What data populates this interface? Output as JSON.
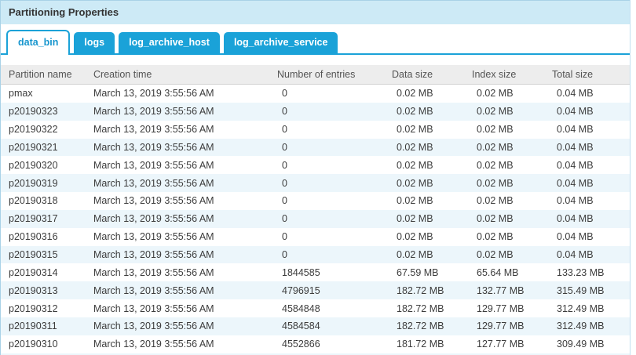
{
  "panel": {
    "title": "Partitioning Properties"
  },
  "tabs": [
    {
      "label": "data_bin",
      "active": true
    },
    {
      "label": "logs",
      "active": false
    },
    {
      "label": "log_archive_host",
      "active": false
    },
    {
      "label": "log_archive_service",
      "active": false
    }
  ],
  "table": {
    "columns": [
      "Partition name",
      "Creation time",
      "Number of entries",
      "Data size",
      "Index size",
      "Total size"
    ],
    "rows": [
      [
        "pmax",
        "March 13, 2019 3:55:56 AM",
        "0",
        "0.02 MB",
        "0.02 MB",
        "0.04 MB"
      ],
      [
        "p20190323",
        "March 13, 2019 3:55:56 AM",
        "0",
        "0.02 MB",
        "0.02 MB",
        "0.04 MB"
      ],
      [
        "p20190322",
        "March 13, 2019 3:55:56 AM",
        "0",
        "0.02 MB",
        "0.02 MB",
        "0.04 MB"
      ],
      [
        "p20190321",
        "March 13, 2019 3:55:56 AM",
        "0",
        "0.02 MB",
        "0.02 MB",
        "0.04 MB"
      ],
      [
        "p20190320",
        "March 13, 2019 3:55:56 AM",
        "0",
        "0.02 MB",
        "0.02 MB",
        "0.04 MB"
      ],
      [
        "p20190319",
        "March 13, 2019 3:55:56 AM",
        "0",
        "0.02 MB",
        "0.02 MB",
        "0.04 MB"
      ],
      [
        "p20190318",
        "March 13, 2019 3:55:56 AM",
        "0",
        "0.02 MB",
        "0.02 MB",
        "0.04 MB"
      ],
      [
        "p20190317",
        "March 13, 2019 3:55:56 AM",
        "0",
        "0.02 MB",
        "0.02 MB",
        "0.04 MB"
      ],
      [
        "p20190316",
        "March 13, 2019 3:55:56 AM",
        "0",
        "0.02 MB",
        "0.02 MB",
        "0.04 MB"
      ],
      [
        "p20190315",
        "March 13, 2019 3:55:56 AM",
        "0",
        "0.02 MB",
        "0.02 MB",
        "0.04 MB"
      ],
      [
        "p20190314",
        "March 13, 2019 3:55:56 AM",
        "1844585",
        "67.59 MB",
        "65.64 MB",
        "133.23 MB"
      ],
      [
        "p20190313",
        "March 13, 2019 3:55:56 AM",
        "4796915",
        "182.72 MB",
        "132.77 MB",
        "315.49 MB"
      ],
      [
        "p20190312",
        "March 13, 2019 3:55:56 AM",
        "4584848",
        "182.72 MB",
        "129.77 MB",
        "312.49 MB"
      ],
      [
        "p20190311",
        "March 13, 2019 3:55:56 AM",
        "4584584",
        "182.72 MB",
        "129.77 MB",
        "312.49 MB"
      ],
      [
        "p20190310",
        "March 13, 2019 3:55:56 AM",
        "4552866",
        "181.72 MB",
        "127.77 MB",
        "309.49 MB"
      ]
    ]
  },
  "colors": {
    "accent": "#1aa2d8",
    "titlebar_bg": "#cdeaf6",
    "header_row_bg": "#ededed",
    "alt_row_bg": "#ecf6fb"
  }
}
